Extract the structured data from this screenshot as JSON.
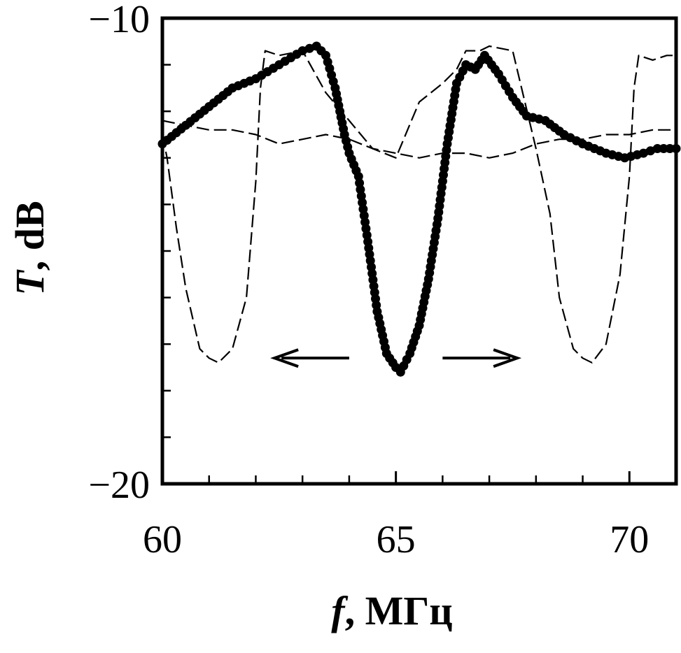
{
  "chart_data": {
    "type": "line",
    "xlabel_var": "f",
    "xlabel_unit": ", МГц",
    "ylabel_var": "T",
    "ylabel_unit": ", dB",
    "xlim": [
      60,
      71
    ],
    "ylim": [
      -20,
      -10
    ],
    "x_ticks": [
      60,
      65,
      70
    ],
    "x_tick_labels": [
      "60",
      "65",
      "70"
    ],
    "x_minor_ticks": [
      61,
      62,
      63,
      64,
      66,
      67,
      68,
      69
    ],
    "y_ticks": [
      -10,
      -20
    ],
    "y_tick_labels": [
      "−10",
      "−20"
    ],
    "y_minor_ticks": [
      -11,
      -12,
      -13,
      -14,
      -15,
      -16,
      -17,
      -18,
      -19
    ],
    "grid": false,
    "legend": "none",
    "annotations": [
      {
        "type": "double-arrow",
        "x_from": 64.0,
        "x_to": 62.4,
        "y": -17.3
      },
      {
        "type": "double-arrow",
        "x_from": 66.0,
        "x_to": 67.6,
        "y": -17.3
      }
    ],
    "series": [
      {
        "style": "thick-dots",
        "x": [
          60,
          60.5,
          61,
          61.5,
          62,
          62.5,
          63,
          63.3,
          63.5,
          63.7,
          63.9,
          64.0,
          64.2,
          64.4,
          64.6,
          64.8,
          65.0,
          65.1,
          65.3,
          65.5,
          65.7,
          65.9,
          66.0,
          66.1,
          66.3,
          66.5,
          66.7,
          66.9,
          67.2,
          67.5,
          67.8,
          68.2,
          68.6,
          69.0,
          69.5,
          69.9,
          70.3,
          70.6,
          71.0
        ],
        "y": [
          -12.7,
          -12.3,
          -11.9,
          -11.5,
          -11.3,
          -11.0,
          -10.7,
          -10.6,
          -10.8,
          -11.5,
          -12.5,
          -12.9,
          -13.4,
          -14.8,
          -16.3,
          -17.2,
          -17.5,
          -17.6,
          -17.2,
          -16.6,
          -15.6,
          -14.3,
          -13.5,
          -12.7,
          -11.4,
          -11.0,
          -11.1,
          -10.8,
          -11.2,
          -11.7,
          -12.1,
          -12.2,
          -12.5,
          -12.7,
          -12.9,
          -13.0,
          -12.9,
          -12.8,
          -12.8
        ]
      },
      {
        "style": "dashed-thin",
        "x": [
          60,
          60.1,
          60.3,
          60.5,
          60.8,
          61.0,
          61.2,
          61.5,
          61.8,
          62.0,
          62.1,
          62.2,
          62.5,
          63.0,
          63.5,
          64.0,
          64.5,
          65.0,
          65.5,
          66.0,
          66.3,
          66.5,
          66.8,
          67.0,
          67.5,
          68.0,
          68.3,
          68.5,
          68.8,
          69.0,
          69.2,
          69.5,
          69.8,
          70.0,
          70.1,
          70.2,
          70.5,
          70.8,
          71.0
        ],
        "y": [
          -12.5,
          -13.0,
          -14.5,
          -15.8,
          -17.1,
          -17.3,
          -17.4,
          -17.1,
          -16.0,
          -13.5,
          -11.5,
          -10.7,
          -10.8,
          -10.7,
          -11.6,
          -12.2,
          -12.8,
          -13.0,
          -11.8,
          -11.4,
          -11.1,
          -10.7,
          -10.7,
          -10.6,
          -10.7,
          -12.8,
          -14.2,
          -16.0,
          -17.1,
          -17.3,
          -17.4,
          -17.0,
          -15.5,
          -13.4,
          -11.5,
          -10.8,
          -10.9,
          -10.8,
          -10.8
        ]
      },
      {
        "style": "dashed-thin",
        "x": [
          60,
          60.5,
          61,
          61.5,
          62,
          62.5,
          63,
          63.5,
          64,
          64.5,
          65,
          65.5,
          66,
          66.5,
          67,
          67.5,
          68,
          68.5,
          69,
          69.5,
          70,
          70.5,
          71
        ],
        "y": [
          -12.2,
          -12.3,
          -12.4,
          -12.4,
          -12.5,
          -12.7,
          -12.6,
          -12.5,
          -12.6,
          -12.8,
          -12.9,
          -13.0,
          -12.9,
          -12.9,
          -13.0,
          -12.9,
          -12.7,
          -12.6,
          -12.6,
          -12.5,
          -12.5,
          -12.4,
          -12.4
        ]
      }
    ]
  }
}
